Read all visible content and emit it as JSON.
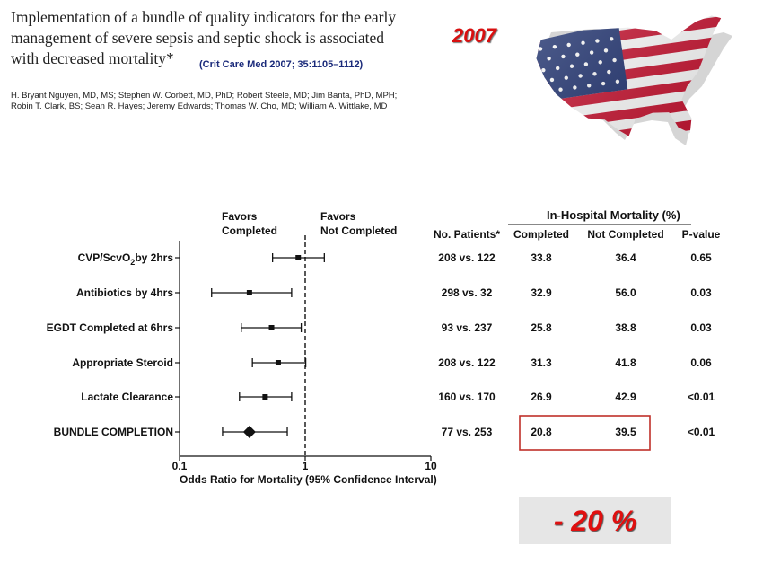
{
  "header": {
    "title": "Implementation of a bundle of quality indicators for the early management of severe sepsis and septic shock is associated with decreased mortality*",
    "citation": "(Crit Care Med 2007; 35:1105–1112)",
    "authors": "H. Bryant Nguyen, MD, MS; Stephen W. Corbett, MD, PhD; Robert Steele, MD; Jim Banta, PhD, MPH; Robin T. Clark, BS; Sean R. Hayes; Jeremy Edwards; Thomas W. Cho, MD; William A. Wittlake, MD",
    "year": "2007"
  },
  "flag_icon": "usa-flag-map-icon",
  "colors": {
    "accent_red": "#d81010",
    "citation_blue": "#1a2a7a",
    "highlight_box": "#c0302a"
  },
  "chart_data": {
    "type": "scatter",
    "x_scale": "log",
    "xlim": [
      0.1,
      10
    ],
    "xticks": [
      "0.1",
      "1",
      "10"
    ],
    "xlabel": "Odds Ratio for Mortality (95% Confidence  Interval)",
    "favors_left": [
      "Favors",
      "Completed"
    ],
    "favors_right": [
      "Favors",
      "Not Completed"
    ],
    "table_group_header": "In-Hospital Mortality (%)",
    "columns": [
      "No. Patients*",
      "Completed",
      "Not Completed",
      "P-value"
    ],
    "rows": [
      {
        "label": "CVP/ScvO",
        "sub": "2",
        "label_tail": "by 2hrs",
        "or": 0.88,
        "ci": [
          0.55,
          1.42
        ],
        "patients": "208 vs. 122",
        "completed": "33.8",
        "not_completed": "36.4",
        "p": "0.65",
        "bold": false
      },
      {
        "label": "Antibiotics by 4hrs",
        "or": 0.36,
        "ci": [
          0.18,
          0.78
        ],
        "patients": "298 vs. 32",
        "completed": "32.9",
        "not_completed": "56.0",
        "p": "0.03",
        "bold": false
      },
      {
        "label": "EGDT Completed at 6hrs",
        "or": 0.54,
        "ci": [
          0.31,
          0.93
        ],
        "patients": "93 vs. 237",
        "completed": "25.8",
        "not_completed": "38.8",
        "p": "0.03",
        "bold": false
      },
      {
        "label": "Appropriate Steroid",
        "or": 0.61,
        "ci": [
          0.38,
          1.01
        ],
        "patients": "208 vs. 122",
        "completed": "31.3",
        "not_completed": "41.8",
        "p": "0.06",
        "bold": false
      },
      {
        "label": "Lactate Clearance",
        "or": 0.48,
        "ci": [
          0.3,
          0.78
        ],
        "patients": "160 vs. 170",
        "completed": "26.9",
        "not_completed": "42.9",
        "p": "<0.01",
        "bold": false
      },
      {
        "label": "BUNDLE COMPLETION",
        "or": 0.36,
        "ci": [
          0.22,
          0.72
        ],
        "patients": "77 vs. 253",
        "completed": "20.8",
        "not_completed": "39.5",
        "p": "<0.01",
        "bold": true,
        "marker": "diamond"
      }
    ]
  },
  "badge": {
    "text": "- 20 %"
  }
}
